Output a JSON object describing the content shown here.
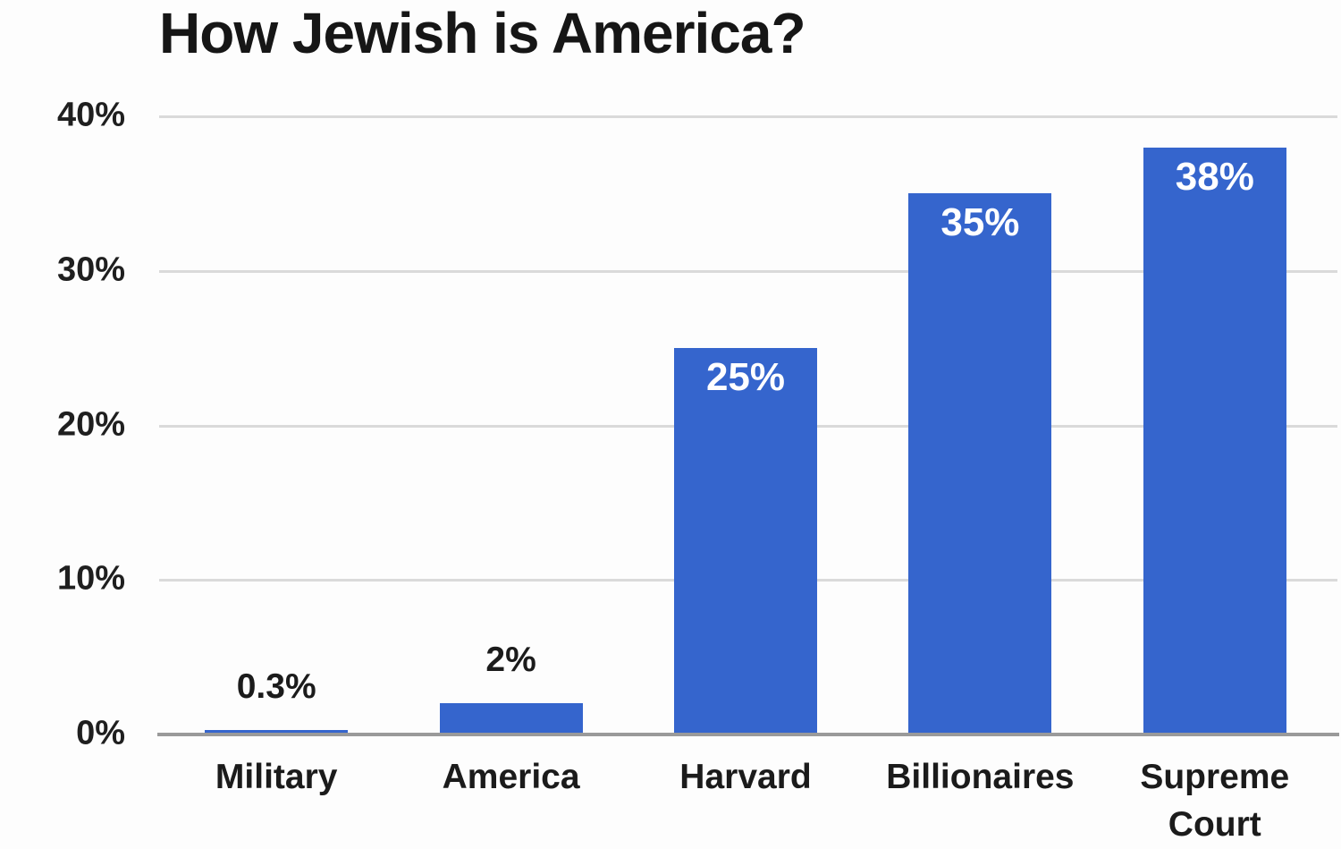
{
  "chart_data": {
    "type": "bar",
    "title": "How Jewish is America?",
    "categories": [
      "Military",
      "America",
      "Harvard",
      "Billionaires",
      "Supreme Court"
    ],
    "values": [
      0.3,
      2,
      25,
      35,
      38
    ],
    "value_labels": [
      "0.3%",
      "2%",
      "25%",
      "35%",
      "38%"
    ],
    "value_label_placement": [
      "outside",
      "outside",
      "inside",
      "inside",
      "inside"
    ],
    "xlabel": "",
    "ylabel": "",
    "ylim": [
      0,
      40
    ],
    "yticks": [
      {
        "value": 0,
        "label": "0%"
      },
      {
        "value": 10,
        "label": "10%"
      },
      {
        "value": 20,
        "label": "20%"
      },
      {
        "value": 30,
        "label": "30%"
      },
      {
        "value": 40,
        "label": "40%"
      }
    ],
    "grid": "horizontal",
    "legend": "none",
    "colors": {
      "bar": "#3565cd",
      "inside_label": "#ffffff",
      "outside_label": "#1b1b1b",
      "gridline": "#dadada",
      "axis_line": "#9a9a9a",
      "tick_text": "#1f1f1f",
      "title_text": "#161616",
      "background": "#fdfdfd"
    }
  }
}
